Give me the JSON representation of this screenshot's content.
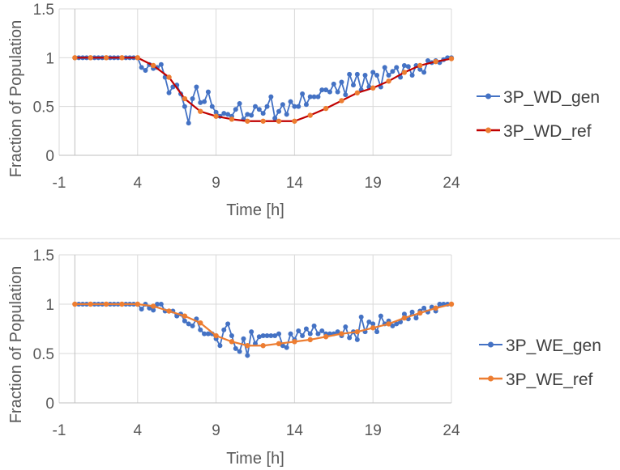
{
  "chart_data": [
    {
      "type": "line",
      "xlabel": "Time [h]",
      "ylabel": "Fraction of Population",
      "xlim": [
        -1,
        24
      ],
      "ylim": [
        0,
        1.5
      ],
      "xticks": [
        "-1",
        "4",
        "9",
        "14",
        "19",
        "24"
      ],
      "yticks": [
        "0",
        "0.5",
        "1",
        "1.5"
      ],
      "legend_position": "right",
      "series": [
        {
          "name": "3P_WD_gen",
          "color": "#4472C4",
          "marker": "circle",
          "x": [
            0.0,
            0.25,
            0.5,
            0.75,
            1.0,
            1.25,
            1.5,
            1.75,
            2.0,
            2.25,
            2.5,
            2.75,
            3.0,
            3.25,
            3.5,
            3.75,
            4.0,
            4.25,
            4.5,
            4.75,
            5.0,
            5.25,
            5.5,
            5.75,
            6.0,
            6.25,
            6.5,
            6.75,
            7.0,
            7.25,
            7.5,
            7.75,
            8.0,
            8.25,
            8.5,
            8.75,
            9.0,
            9.25,
            9.5,
            9.75,
            10.0,
            10.25,
            10.5,
            10.75,
            11.0,
            11.25,
            11.5,
            11.75,
            12.0,
            12.25,
            12.5,
            12.75,
            13.0,
            13.25,
            13.5,
            13.75,
            14.0,
            14.25,
            14.5,
            14.75,
            15.0,
            15.25,
            15.5,
            15.75,
            16.0,
            16.25,
            16.5,
            16.75,
            17.0,
            17.25,
            17.5,
            17.75,
            18.0,
            18.25,
            18.5,
            18.75,
            19.0,
            19.25,
            19.5,
            19.75,
            20.0,
            20.25,
            20.5,
            20.75,
            21.0,
            21.25,
            21.5,
            21.75,
            22.0,
            22.25,
            22.5,
            22.75,
            23.0,
            23.25,
            23.5,
            23.75,
            24.0
          ],
          "y": [
            1.0,
            1.0,
            1.0,
            1.0,
            1.0,
            1.0,
            1.0,
            1.0,
            1.0,
            1.0,
            1.0,
            1.0,
            1.0,
            1.0,
            1.0,
            1.0,
            1.0,
            0.9,
            0.87,
            0.93,
            0.89,
            0.9,
            0.93,
            0.8,
            0.64,
            0.7,
            0.72,
            0.63,
            0.5,
            0.33,
            0.58,
            0.7,
            0.54,
            0.55,
            0.65,
            0.5,
            0.44,
            0.4,
            0.43,
            0.42,
            0.4,
            0.47,
            0.53,
            0.37,
            0.42,
            0.41,
            0.5,
            0.47,
            0.43,
            0.5,
            0.6,
            0.38,
            0.45,
            0.52,
            0.42,
            0.55,
            0.5,
            0.5,
            0.63,
            0.52,
            0.6,
            0.6,
            0.6,
            0.67,
            0.67,
            0.65,
            0.73,
            0.65,
            0.75,
            0.62,
            0.83,
            0.72,
            0.83,
            0.67,
            0.82,
            0.7,
            0.85,
            0.82,
            0.7,
            0.9,
            0.82,
            0.86,
            0.9,
            0.8,
            0.92,
            0.91,
            0.82,
            0.92,
            0.88,
            0.85,
            0.97,
            0.95,
            0.97,
            0.95,
            0.98,
            1.0,
            1.0
          ]
        },
        {
          "name": "3P_WD_ref",
          "color": "#C00000",
          "marker_color": "#ED7D31",
          "marker": "circle",
          "x": [
            0,
            1,
            2,
            3,
            4,
            5,
            6,
            7,
            8,
            9,
            10,
            11,
            12,
            13,
            14,
            15,
            16,
            17,
            18,
            19,
            20,
            21,
            22,
            23,
            24
          ],
          "y": [
            1.0,
            1.0,
            1.0,
            1.0,
            1.0,
            0.92,
            0.8,
            0.58,
            0.45,
            0.4,
            0.37,
            0.35,
            0.35,
            0.35,
            0.35,
            0.41,
            0.48,
            0.56,
            0.64,
            0.69,
            0.76,
            0.85,
            0.92,
            0.96,
            0.99
          ]
        }
      ]
    },
    {
      "type": "line",
      "xlabel": "Time [h]",
      "ylabel": "Fraction of Population",
      "xlim": [
        -1,
        24
      ],
      "ylim": [
        0,
        1.5
      ],
      "xticks": [
        "-1",
        "4",
        "9",
        "14",
        "19",
        "24"
      ],
      "yticks": [
        "0",
        "0.5",
        "1",
        "1.5"
      ],
      "legend_position": "right",
      "series": [
        {
          "name": "3P_WE_gen",
          "color": "#4472C4",
          "marker": "circle",
          "x": [
            0.0,
            0.25,
            0.5,
            0.75,
            1.0,
            1.25,
            1.5,
            1.75,
            2.0,
            2.25,
            2.5,
            2.75,
            3.0,
            3.25,
            3.5,
            3.75,
            4.0,
            4.25,
            4.5,
            4.75,
            5.0,
            5.25,
            5.5,
            5.75,
            6.0,
            6.25,
            6.5,
            6.75,
            7.0,
            7.25,
            7.5,
            7.75,
            8.0,
            8.25,
            8.5,
            8.75,
            9.0,
            9.25,
            9.5,
            9.75,
            10.0,
            10.25,
            10.5,
            10.75,
            11.0,
            11.25,
            11.5,
            11.75,
            12.0,
            12.25,
            12.5,
            12.75,
            13.0,
            13.25,
            13.5,
            13.75,
            14.0,
            14.25,
            14.5,
            14.75,
            15.0,
            15.25,
            15.5,
            15.75,
            16.0,
            16.25,
            16.5,
            16.75,
            17.0,
            17.25,
            17.5,
            17.75,
            18.0,
            18.25,
            18.5,
            18.75,
            19.0,
            19.25,
            19.5,
            19.75,
            20.0,
            20.25,
            20.5,
            20.75,
            21.0,
            21.25,
            21.5,
            21.75,
            22.0,
            22.25,
            22.5,
            22.75,
            23.0,
            23.25,
            23.5,
            23.75,
            24.0
          ],
          "y": [
            1.0,
            1.0,
            1.0,
            1.0,
            1.0,
            1.0,
            1.0,
            1.0,
            1.0,
            1.0,
            1.0,
            1.0,
            1.0,
            1.0,
            1.0,
            1.0,
            1.0,
            0.95,
            1.0,
            0.96,
            0.94,
            1.0,
            1.0,
            0.93,
            0.93,
            0.93,
            0.88,
            0.9,
            0.83,
            0.8,
            0.78,
            0.85,
            0.74,
            0.7,
            0.7,
            0.7,
            0.65,
            0.58,
            0.74,
            0.8,
            0.68,
            0.55,
            0.52,
            0.65,
            0.48,
            0.72,
            0.6,
            0.67,
            0.68,
            0.68,
            0.68,
            0.68,
            0.7,
            0.58,
            0.56,
            0.7,
            0.64,
            0.73,
            0.68,
            0.75,
            0.7,
            0.78,
            0.7,
            0.73,
            0.7,
            0.7,
            0.7,
            0.72,
            0.68,
            0.77,
            0.66,
            0.72,
            0.64,
            0.87,
            0.72,
            0.82,
            0.8,
            0.72,
            0.88,
            0.8,
            0.83,
            0.78,
            0.8,
            0.82,
            0.9,
            0.85,
            0.92,
            0.86,
            0.93,
            0.96,
            0.92,
            0.97,
            0.93,
            1.0,
            1.0,
            1.0,
            1.0
          ]
        },
        {
          "name": "3P_WE_ref",
          "color": "#ED7D31",
          "marker_color": "#ED7D31",
          "marker": "circle",
          "x": [
            0,
            1,
            2,
            3,
            4,
            5,
            6,
            7,
            8,
            9,
            10,
            11,
            12,
            13,
            14,
            15,
            16,
            17,
            18,
            19,
            20,
            21,
            22,
            23,
            24
          ],
          "y": [
            1.0,
            1.0,
            1.0,
            1.0,
            1.0,
            0.98,
            0.93,
            0.88,
            0.81,
            0.68,
            0.62,
            0.58,
            0.58,
            0.6,
            0.62,
            0.64,
            0.67,
            0.7,
            0.72,
            0.76,
            0.8,
            0.86,
            0.91,
            0.96,
            1.0
          ]
        }
      ]
    }
  ]
}
